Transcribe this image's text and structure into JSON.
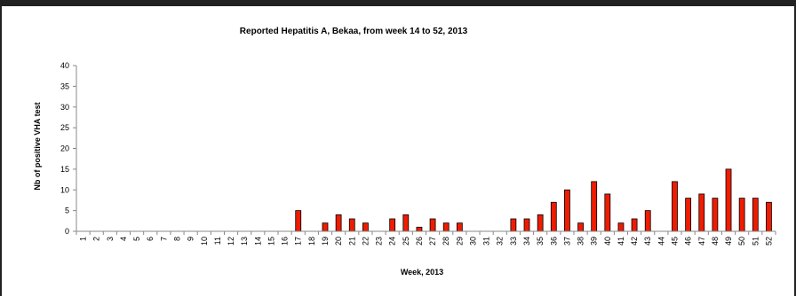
{
  "chart_data": {
    "type": "bar",
    "title": "Reported Hepatitis A, Bekaa, from week 14 to 52, 2013",
    "xlabel": "Week, 2013",
    "ylabel": "Nb of positive VHA test",
    "ylim": [
      0,
      40
    ],
    "yticks": [
      0,
      5,
      10,
      15,
      20,
      25,
      30,
      35,
      40
    ],
    "grid": false,
    "legend": "none",
    "bar_color": "#ee1c00",
    "categories": [
      "1",
      "2",
      "3",
      "4",
      "5",
      "6",
      "7",
      "8",
      "9",
      "10",
      "11",
      "12",
      "13",
      "14",
      "15",
      "16",
      "17",
      "18",
      "19",
      "20",
      "21",
      "22",
      "23",
      "24",
      "25",
      "26",
      "27",
      "28",
      "29",
      "30",
      "31",
      "32",
      "33",
      "34",
      "35",
      "36",
      "37",
      "38",
      "39",
      "40",
      "41",
      "42",
      "43",
      "44",
      "45",
      "46",
      "47",
      "48",
      "49",
      "50",
      "51",
      "52"
    ],
    "values": [
      0,
      0,
      0,
      0,
      0,
      0,
      0,
      0,
      0,
      0,
      0,
      0,
      0,
      0,
      0,
      0,
      5,
      0,
      2,
      4,
      3,
      2,
      0,
      3,
      4,
      1,
      3,
      2,
      2,
      0,
      0,
      0,
      3,
      3,
      4,
      7,
      10,
      2,
      12,
      9,
      2,
      3,
      5,
      0,
      12,
      8,
      9,
      8,
      15,
      8,
      8,
      7
    ]
  }
}
